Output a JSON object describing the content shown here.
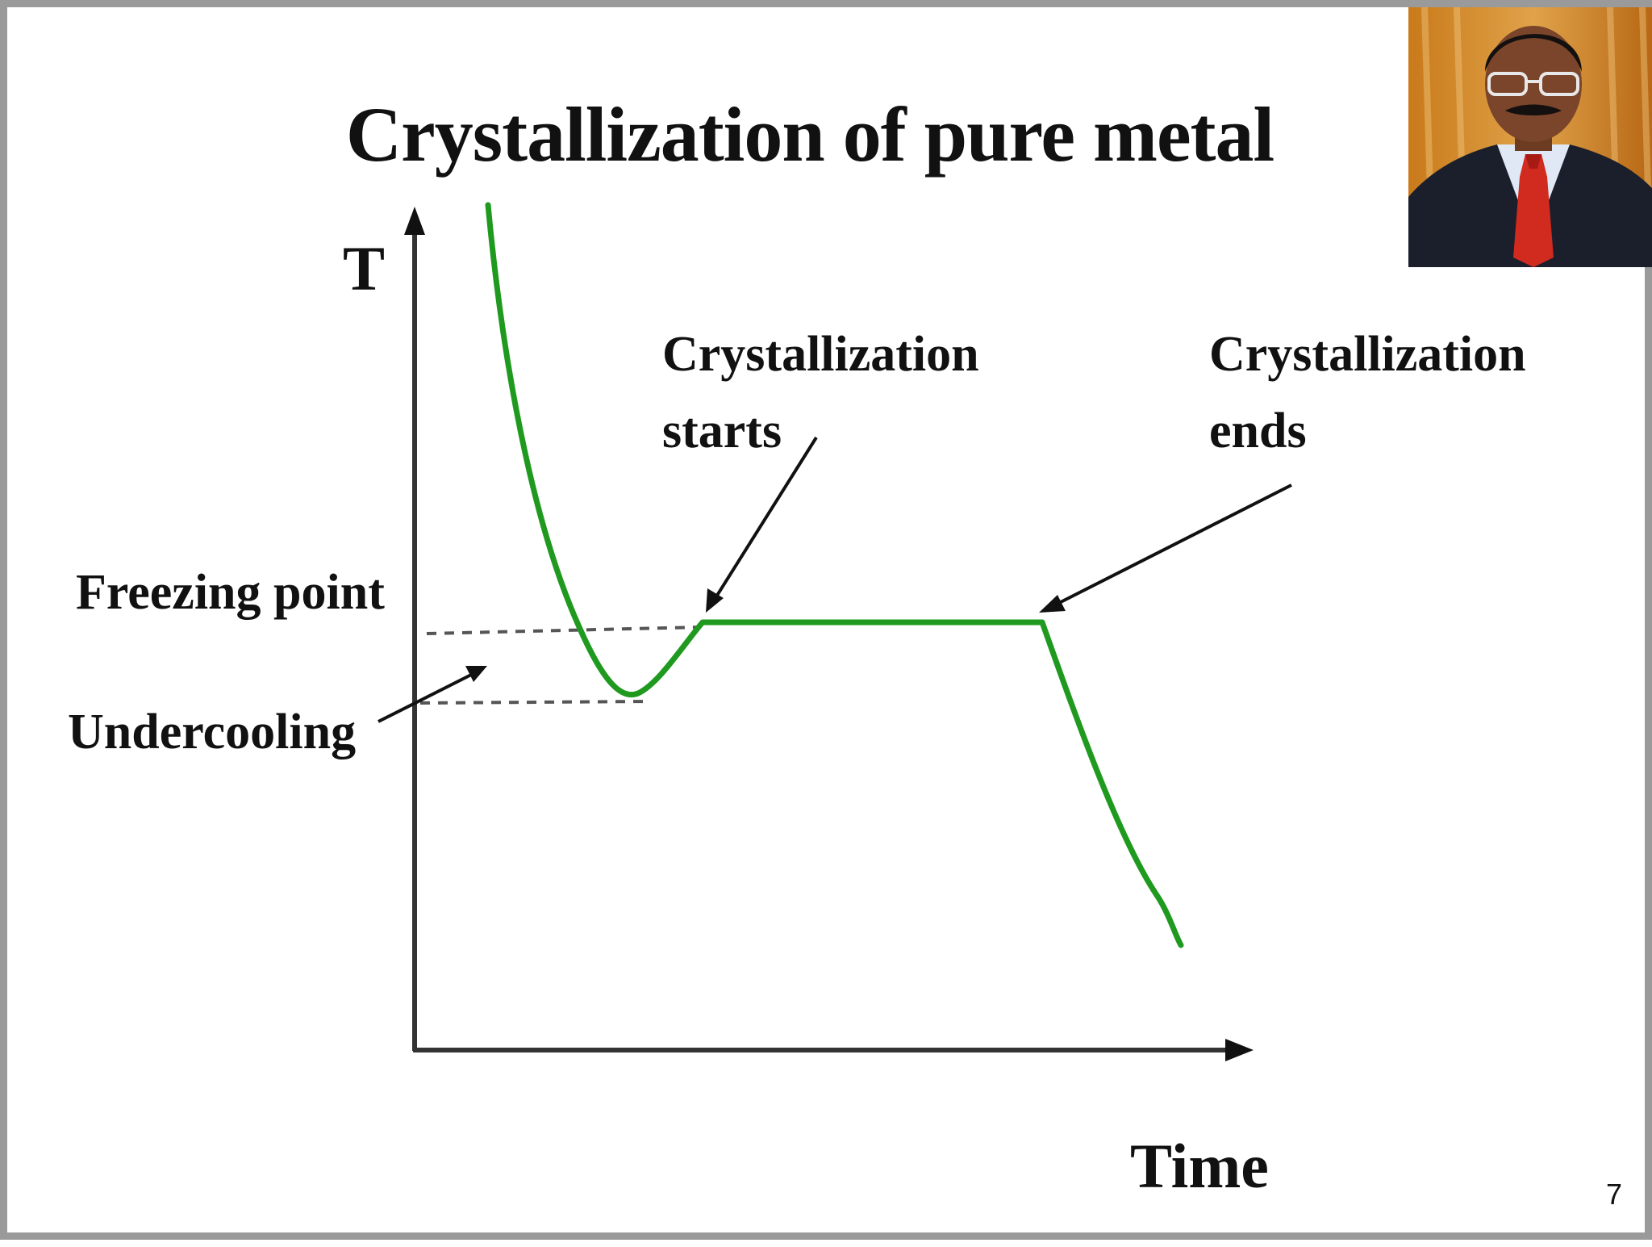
{
  "slide": {
    "title": "Crystallization of pure metal",
    "page_number": "7"
  },
  "axes": {
    "y_label": "T",
    "x_label": "Time"
  },
  "annotations": {
    "freezing_point": "Freezing point",
    "undercooling": "Undercooling",
    "crystallization_starts": [
      "Crystallization",
      "starts"
    ],
    "crystallization_ends": [
      "Crystallization",
      "ends"
    ]
  },
  "colors": {
    "curve": "#1f9a1f",
    "axis": "#333333",
    "dashed": "#555555",
    "text": "#111111",
    "border": "#9a9a9a"
  },
  "presenter_photo": {
    "description_icon": "presenter-photo"
  }
}
